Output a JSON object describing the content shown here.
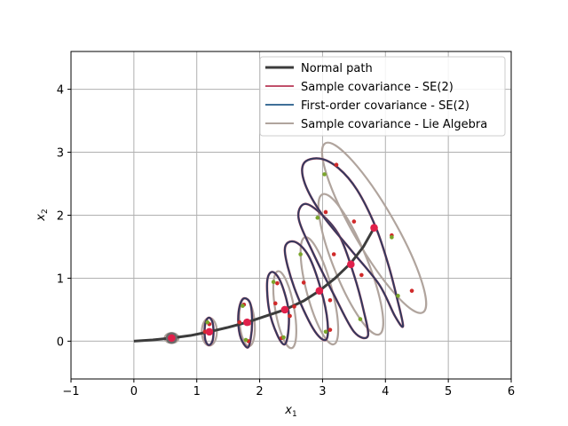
{
  "chart_data": {
    "type": "line",
    "title": "",
    "xlabel": "x",
    "xlabel_sub": "1",
    "ylabel": "x",
    "ylabel_sub": "2",
    "xlim": [
      -1,
      6
    ],
    "ylim": [
      -0.6,
      4.6
    ],
    "xticks": [
      -1,
      0,
      1,
      2,
      3,
      4,
      5,
      6
    ],
    "yticks": [
      0,
      1,
      2,
      3,
      4
    ],
    "grid": true,
    "legend_position": "upper-right",
    "colors": {
      "normal_path": "#3c3c3c",
      "sample_se2": "#c0506a",
      "first_order": "#3f6f98",
      "lie_algebra": "#b0a49d",
      "ellipse_overlap": "#333a5e",
      "mean_marker": "#e0204a",
      "sample_red": "#d02a2a",
      "sample_green": "#7aa52a"
    },
    "series": [
      {
        "name": "Normal path",
        "x": [
          0.0,
          0.3,
          0.6,
          0.9,
          1.2,
          1.5,
          1.8,
          2.1,
          2.4,
          2.7,
          2.95,
          3.2,
          3.45,
          3.65,
          3.82
        ],
        "y": [
          0.0,
          0.02,
          0.05,
          0.09,
          0.15,
          0.22,
          0.3,
          0.4,
          0.5,
          0.64,
          0.8,
          1.0,
          1.24,
          1.5,
          1.8
        ]
      },
      {
        "name": "Sample covariance - SE(2)"
      },
      {
        "name": "First-order covariance - SE(2)"
      },
      {
        "name": "Sample covariance - Lie Algebra"
      }
    ],
    "mean_points": [
      {
        "x": 0.6,
        "y": 0.05
      },
      {
        "x": 1.2,
        "y": 0.15
      },
      {
        "x": 1.8,
        "y": 0.3
      },
      {
        "x": 2.4,
        "y": 0.5
      },
      {
        "x": 2.95,
        "y": 0.8
      },
      {
        "x": 3.45,
        "y": 1.22
      },
      {
        "x": 3.82,
        "y": 1.8
      }
    ],
    "se2_banana_ellipses": [
      {
        "cx": 1.2,
        "cy": 0.15,
        "pts": [
          [
            1.17,
            -0.05
          ],
          [
            1.22,
            -0.05
          ],
          [
            1.26,
            0.05
          ],
          [
            1.26,
            0.25
          ],
          [
            1.22,
            0.36
          ],
          [
            1.17,
            0.36
          ],
          [
            1.13,
            0.25
          ],
          [
            1.13,
            0.05
          ]
        ]
      },
      {
        "cx": 1.8,
        "cy": 0.3,
        "pts": [
          [
            1.8,
            -0.1
          ],
          [
            1.85,
            0.0
          ],
          [
            1.88,
            0.3
          ],
          [
            1.85,
            0.6
          ],
          [
            1.75,
            0.68
          ],
          [
            1.68,
            0.55
          ],
          [
            1.66,
            0.3
          ],
          [
            1.7,
            0.05
          ]
        ]
      },
      {
        "cx": 2.4,
        "cy": 0.5,
        "pts": [
          [
            2.4,
            -0.05
          ],
          [
            2.46,
            0.2
          ],
          [
            2.45,
            0.55
          ],
          [
            2.33,
            0.95
          ],
          [
            2.2,
            1.1
          ],
          [
            2.12,
            0.95
          ],
          [
            2.15,
            0.5
          ],
          [
            2.28,
            0.1
          ]
        ]
      },
      {
        "cx": 2.95,
        "cy": 0.8,
        "pts": [
          [
            3.05,
            0.02
          ],
          [
            3.08,
            0.3
          ],
          [
            2.98,
            0.8
          ],
          [
            2.78,
            1.35
          ],
          [
            2.55,
            1.58
          ],
          [
            2.4,
            1.45
          ],
          [
            2.55,
            0.85
          ],
          [
            2.85,
            0.2
          ]
        ]
      },
      {
        "cx": 3.45,
        "cy": 1.22,
        "pts": [
          [
            3.72,
            0.08
          ],
          [
            3.65,
            0.5
          ],
          [
            3.5,
            1.05
          ],
          [
            3.28,
            1.65
          ],
          [
            3.0,
            2.0
          ],
          [
            2.72,
            2.18
          ],
          [
            2.62,
            1.95
          ],
          [
            2.85,
            1.4
          ],
          [
            3.2,
            0.7
          ],
          [
            3.5,
            0.15
          ]
        ]
      },
      {
        "cx": 3.82,
        "cy": 1.8,
        "pts": [
          [
            4.28,
            0.24
          ],
          [
            4.18,
            0.7
          ],
          [
            4.05,
            1.2
          ],
          [
            3.85,
            1.8
          ],
          [
            3.55,
            2.4
          ],
          [
            3.25,
            2.75
          ],
          [
            2.95,
            2.9
          ],
          [
            2.7,
            2.82
          ],
          [
            2.72,
            2.5
          ],
          [
            3.0,
            2.0
          ],
          [
            3.45,
            1.45
          ],
          [
            3.9,
            0.9
          ],
          [
            4.15,
            0.4
          ]
        ]
      }
    ],
    "lie_algebra_ellipses": [
      {
        "cx": 0.6,
        "cy": 0.05,
        "rx": 0.11,
        "ry": 0.08,
        "angle": 0
      },
      {
        "cx": 1.2,
        "cy": 0.15,
        "rx": 0.12,
        "ry": 0.22,
        "angle": 0
      },
      {
        "cx": 1.8,
        "cy": 0.3,
        "rx": 0.12,
        "ry": 0.38,
        "angle": -5
      },
      {
        "cx": 2.4,
        "cy": 0.5,
        "rx": 0.15,
        "ry": 0.62,
        "angle": -10
      },
      {
        "cx": 2.95,
        "cy": 0.8,
        "rx": 0.2,
        "ry": 0.88,
        "angle": -15
      },
      {
        "cx": 3.45,
        "cy": 1.22,
        "rx": 0.27,
        "ry": 1.2,
        "angle": -22
      },
      {
        "cx": 3.82,
        "cy": 1.8,
        "rx": 0.33,
        "ry": 1.55,
        "angle": -30
      }
    ],
    "samples_red": [
      [
        1.13,
        0.15
      ],
      [
        1.2,
        0.27
      ],
      [
        1.68,
        0.3
      ],
      [
        1.75,
        0.58
      ],
      [
        1.83,
        0.28
      ],
      [
        1.82,
        0.0
      ],
      [
        2.25,
        0.6
      ],
      [
        2.35,
        0.05
      ],
      [
        2.48,
        0.4
      ],
      [
        2.28,
        0.92
      ],
      [
        2.7,
        0.93
      ],
      [
        3.12,
        0.18
      ],
      [
        3.12,
        0.65
      ],
      [
        3.18,
        1.38
      ],
      [
        3.05,
        2.05
      ],
      [
        3.5,
        1.9
      ],
      [
        3.62,
        1.05
      ],
      [
        3.22,
        2.8
      ],
      [
        4.1,
        1.68
      ],
      [
        4.42,
        0.8
      ],
      [
        2.55,
        0.55
      ]
    ],
    "samples_green": [
      [
        1.17,
        0.3
      ],
      [
        1.73,
        0.56
      ],
      [
        1.78,
        0.02
      ],
      [
        2.22,
        0.94
      ],
      [
        2.38,
        0.06
      ],
      [
        2.65,
        1.38
      ],
      [
        2.92,
        1.96
      ],
      [
        3.03,
        2.65
      ],
      [
        3.05,
        0.15
      ],
      [
        3.6,
        0.35
      ],
      [
        4.1,
        1.65
      ],
      [
        4.2,
        0.72
      ]
    ]
  }
}
